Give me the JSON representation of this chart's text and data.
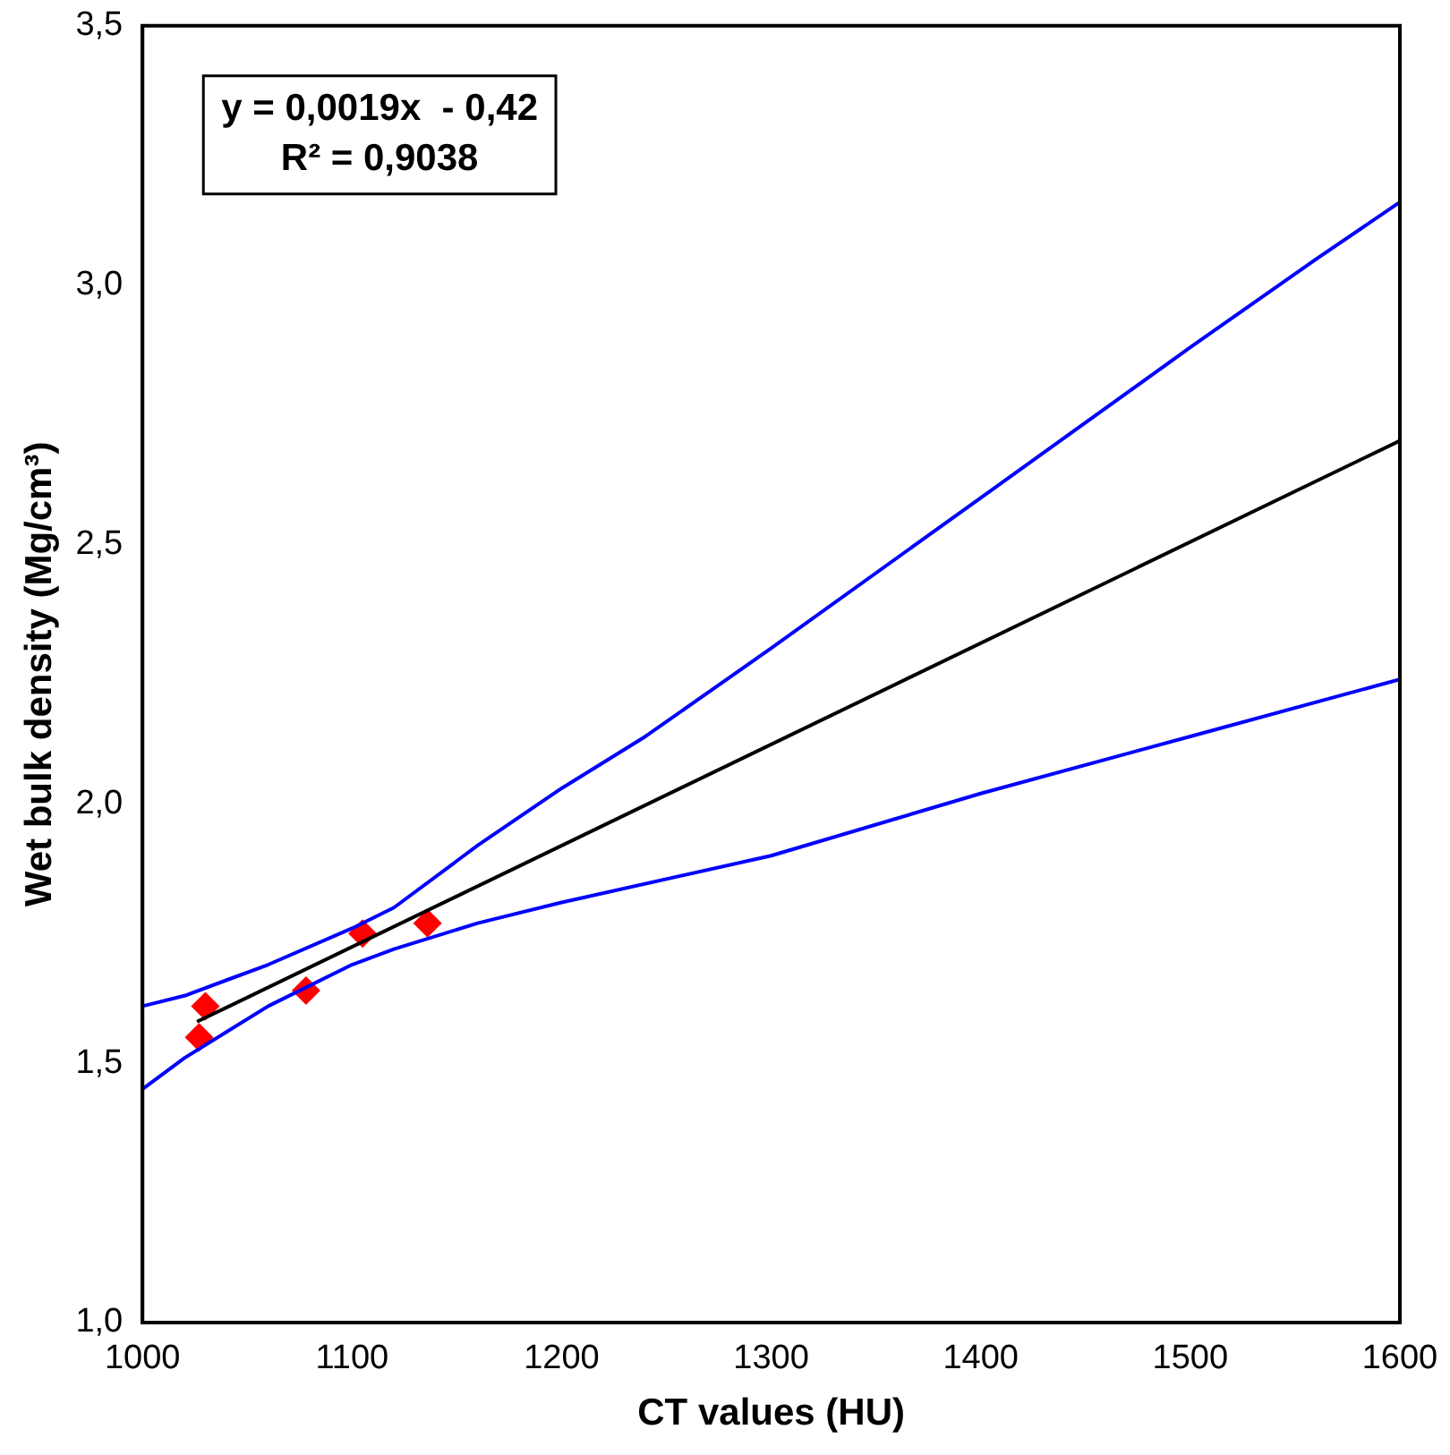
{
  "chart_data": {
    "type": "scatter",
    "xlabel": "CT values (HU)",
    "ylabel": "Wet bulk density (Mg/cm³)",
    "annotations": [
      "y = 0,0019x  - 0,42",
      "R² = 0,9038"
    ],
    "xlim": [
      1000,
      1600
    ],
    "xticks": [
      1000,
      1100,
      1200,
      1300,
      1400,
      1500,
      1600
    ],
    "ylim": [
      1.0,
      3.5
    ],
    "yticks": [
      {
        "value": 1.0,
        "label": "1,0"
      },
      {
        "value": 1.5,
        "label": "1,5"
      },
      {
        "value": 2.0,
        "label": "2,0"
      },
      {
        "value": 2.5,
        "label": "2,5"
      },
      {
        "value": 3.0,
        "label": "3,0"
      },
      {
        "value": 3.5,
        "label": "3,5"
      }
    ],
    "grid": false,
    "legend": false,
    "series": [
      {
        "type": "line",
        "color": "#0000ff",
        "marker": "none",
        "x": [
          1000,
          1020,
          1060,
          1100,
          1120,
          1160,
          1200,
          1240,
          1300,
          1400,
          1500,
          1560,
          1600
        ],
        "values": [
          1.61,
          1.63,
          1.69,
          1.76,
          1.8,
          1.92,
          2.03,
          2.13,
          2.3,
          2.59,
          2.88,
          3.05,
          3.16
        ]
      },
      {
        "type": "line",
        "color": "#0000ff",
        "marker": "none",
        "x": [
          1000,
          1020,
          1060,
          1100,
          1120,
          1160,
          1200,
          1300,
          1400,
          1500,
          1600
        ],
        "values": [
          1.45,
          1.51,
          1.61,
          1.69,
          1.72,
          1.77,
          1.81,
          1.9,
          2.02,
          2.13,
          2.24
        ]
      },
      {
        "type": "line",
        "color": "#000000",
        "marker": "none",
        "x": [
          1026,
          1600
        ],
        "values": [
          1.58,
          2.7
        ]
      },
      {
        "color": "#ff0000",
        "marker": "diamond",
        "x": [
          1027,
          1030,
          1078,
          1105,
          1136
        ],
        "values": [
          1.55,
          1.61,
          1.64,
          1.75,
          1.77
        ]
      }
    ]
  }
}
